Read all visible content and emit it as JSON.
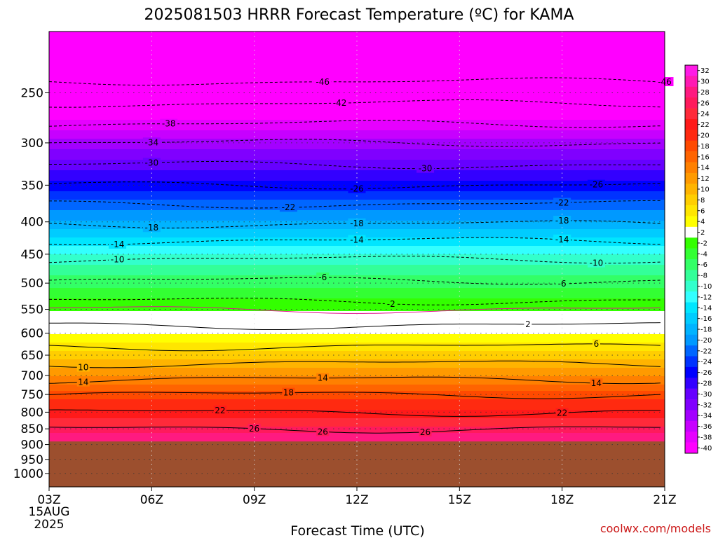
{
  "chart_data": {
    "type": "heatmap",
    "title": "2025081503 HRRR Forecast Temperature (ºC) for KAMA",
    "xlabel": "Forecast Time (UTC)",
    "credit": "coolwx.com/models",
    "x_ticks": [
      "03Z",
      "06Z",
      "09Z",
      "12Z",
      "15Z",
      "18Z",
      "21Z"
    ],
    "x_date_label": [
      "15AUG",
      "2025"
    ],
    "y_ticks": [
      250,
      300,
      350,
      400,
      450,
      500,
      550,
      600,
      650,
      700,
      750,
      800,
      850,
      900,
      950,
      1000
    ],
    "y_scale": "log",
    "y_range_hPa": [
      200,
      1050
    ],
    "x_range_hours": [
      3,
      21
    ],
    "surface_pressure_hPa": 890,
    "surface_color": "#9c4f2e",
    "colorbar": {
      "levels": [
        32,
        30,
        28,
        26,
        24,
        22,
        20,
        18,
        16,
        14,
        12,
        10,
        8,
        6,
        4,
        2,
        -2,
        -4,
        -6,
        -8,
        -10,
        -12,
        -14,
        -16,
        -18,
        -20,
        -22,
        -24,
        -26,
        -28,
        -30,
        -32,
        -34,
        -36,
        -38,
        -40
      ],
      "colors": [
        "#ff1ae6",
        "#ff1ab3",
        "#ff1a80",
        "#ff1a5c",
        "#ff2a3a",
        "#ff1a1a",
        "#ff2a10",
        "#ff4a00",
        "#ff6400",
        "#ff8000",
        "#ff9a00",
        "#ffb400",
        "#ffce00",
        "#ffe600",
        "#ffff00",
        "#ffffff",
        "#33ff00",
        "#33ff33",
        "#33ff66",
        "#33ff99",
        "#33ffcc",
        "#33ffff",
        "#00e6ff",
        "#00ccff",
        "#00b3ff",
        "#0099ff",
        "#0066ff",
        "#0033ff",
        "#0000ff",
        "#3300ff",
        "#6600ff",
        "#8000ff",
        "#a300ff",
        "#c700ff",
        "#e600ff",
        "#ff00ff"
      ]
    },
    "temperature_profile": [
      {
        "p": 200,
        "t": -54
      },
      {
        "p": 225,
        "t": -49
      },
      {
        "p": 250,
        "t": -44
      },
      {
        "p": 275,
        "t": -39
      },
      {
        "p": 300,
        "t": -34
      },
      {
        "p": 325,
        "t": -30
      },
      {
        "p": 350,
        "t": -26
      },
      {
        "p": 375,
        "t": -22
      },
      {
        "p": 400,
        "t": -18.5
      },
      {
        "p": 425,
        "t": -14.5
      },
      {
        "p": 450,
        "t": -11
      },
      {
        "p": 475,
        "t": -8
      },
      {
        "p": 500,
        "t": -5.5
      },
      {
        "p": 525,
        "t": -3
      },
      {
        "p": 550,
        "t": 0
      },
      {
        "p": 575,
        "t": 1.5
      },
      {
        "p": 600,
        "t": 3
      },
      {
        "p": 625,
        "t": 5.5
      },
      {
        "p": 650,
        "t": 8
      },
      {
        "p": 675,
        "t": 10.5
      },
      {
        "p": 700,
        "t": 13
      },
      {
        "p": 725,
        "t": 15.5
      },
      {
        "p": 750,
        "t": 18
      },
      {
        "p": 775,
        "t": 20
      },
      {
        "p": 800,
        "t": 22
      },
      {
        "p": 825,
        "t": 24
      },
      {
        "p": 850,
        "t": 26
      },
      {
        "p": 875,
        "t": 28
      },
      {
        "p": 900,
        "t": 29
      }
    ],
    "contours": [
      {
        "value": -46,
        "style": "dashed",
        "label_x": [
          11.0,
          21.0
        ]
      },
      {
        "value": -42,
        "style": "dashed",
        "label_x": [
          11.5
        ]
      },
      {
        "value": -38,
        "style": "dashed",
        "label_x": [
          6.5
        ]
      },
      {
        "value": -34,
        "style": "dashed",
        "label_x": [
          6.0
        ]
      },
      {
        "value": -30,
        "style": "dashed",
        "label_x": [
          6.0,
          14.0
        ]
      },
      {
        "value": -26,
        "style": "dashed",
        "label_x": [
          12.0,
          19.0
        ]
      },
      {
        "value": -22,
        "style": "dashed",
        "label_x": [
          10.0,
          18.0
        ]
      },
      {
        "value": -18,
        "style": "dashed",
        "label_x": [
          6.0,
          12.0,
          18.0
        ]
      },
      {
        "value": -14,
        "style": "dashed",
        "label_x": [
          5.0,
          12.0,
          18.0
        ]
      },
      {
        "value": -10,
        "style": "dashed",
        "label_x": [
          5.0,
          19.0
        ]
      },
      {
        "value": -6,
        "style": "dashed",
        "label_x": [
          11.0,
          18.0
        ]
      },
      {
        "value": -2,
        "style": "dashed",
        "label_x": [
          13.0
        ]
      },
      {
        "value": 0,
        "style": "solid-magenta",
        "label_x": []
      },
      {
        "value": 2,
        "style": "solid",
        "label_x": [
          17.0
        ]
      },
      {
        "value": 6,
        "style": "solid",
        "label_x": [
          19.0
        ]
      },
      {
        "value": 10,
        "style": "solid",
        "label_x": [
          4.0
        ]
      },
      {
        "value": 14,
        "style": "solid",
        "label_x": [
          4.0,
          11.0,
          19.0
        ]
      },
      {
        "value": 18,
        "style": "solid",
        "label_x": [
          10.0
        ]
      },
      {
        "value": 22,
        "style": "solid",
        "label_x": [
          8.0,
          18.0
        ]
      },
      {
        "value": 26,
        "style": "solid",
        "label_x": [
          9.0,
          14.0,
          11.0
        ]
      }
    ],
    "grid": true
  }
}
